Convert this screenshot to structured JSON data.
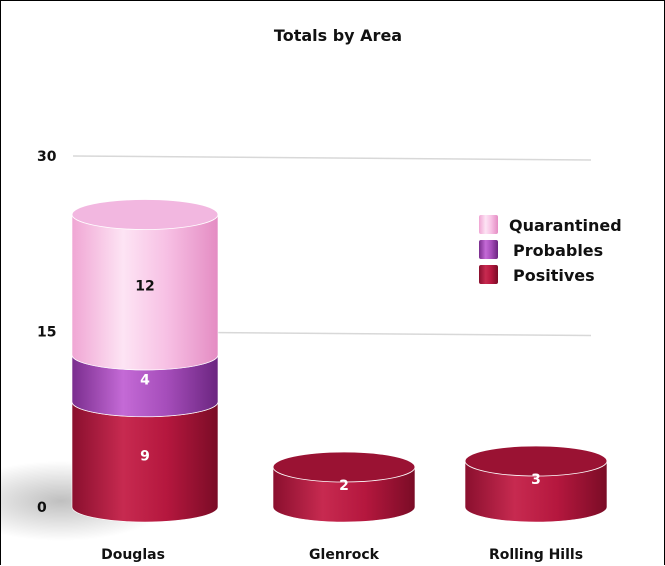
{
  "chart_data": {
    "type": "bar",
    "stacked": true,
    "title": "Totals by Area",
    "xlabel": "",
    "ylabel": "",
    "categories": [
      "Douglas",
      "Glenrock",
      "Rolling Hills"
    ],
    "series": [
      {
        "name": "Positives",
        "values": [
          9,
          2,
          3
        ],
        "color": "#b5173e"
      },
      {
        "name": "Probables",
        "values": [
          4,
          0,
          0
        ],
        "color": "#9b3fb0"
      },
      {
        "name": "Quarantined",
        "values": [
          12,
          0,
          0
        ],
        "color": "#f7b3df"
      }
    ],
    "yticks": [
      0,
      15,
      30
    ],
    "ylim": [
      0,
      30
    ],
    "grid": true,
    "legend": "right"
  }
}
